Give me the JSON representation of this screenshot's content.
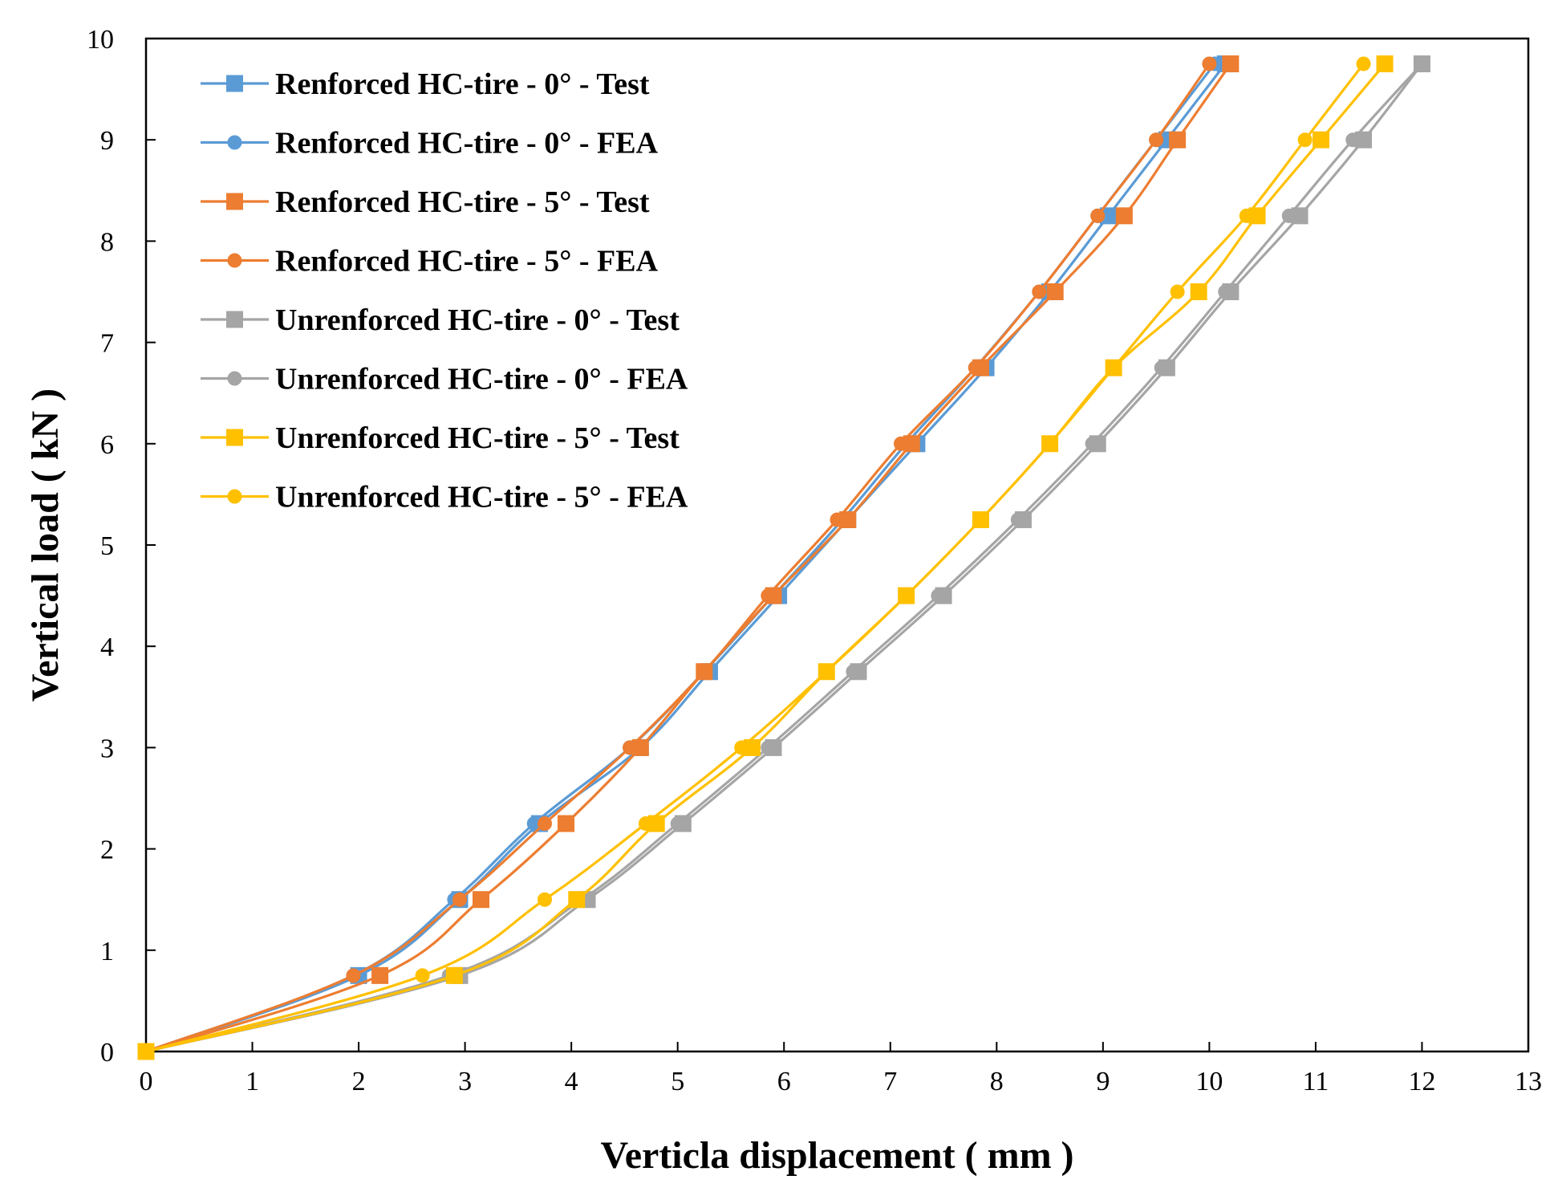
{
  "chart_data": {
    "type": "line",
    "title": "",
    "xlabel": "Verticla displacement ( mm )",
    "ylabel": "Vertical load ( kN )",
    "xlim": [
      0,
      13
    ],
    "ylim": [
      0,
      10
    ],
    "xticks": [
      0,
      1,
      2,
      3,
      4,
      5,
      6,
      7,
      8,
      9,
      10,
      11,
      12,
      13
    ],
    "yticks": [
      0,
      1,
      2,
      3,
      4,
      5,
      6,
      7,
      8,
      9,
      10
    ],
    "legend_position": "top-left",
    "grid": false,
    "series": [
      {
        "name": "Renforced HC-tire - 0° - Test",
        "color": "#5B9BD5",
        "marker": "square",
        "x": [
          0,
          2.0,
          2.95,
          3.7,
          4.65,
          5.3,
          5.95,
          6.6,
          7.25,
          7.9,
          8.5,
          9.05,
          9.6,
          10.15
        ],
        "y": [
          0,
          0.75,
          1.5,
          2.25,
          3.0,
          3.75,
          4.5,
          5.25,
          6.0,
          6.75,
          7.5,
          8.25,
          9.0,
          9.75
        ]
      },
      {
        "name": "Renforced HC-tire - 0° - FEA",
        "color": "#5B9BD5",
        "marker": "circle",
        "x": [
          0,
          1.95,
          2.9,
          3.65,
          4.55,
          5.25,
          5.9,
          6.55,
          7.15,
          7.8,
          8.4,
          8.95,
          9.5,
          10.05
        ],
        "y": [
          0,
          0.75,
          1.5,
          2.25,
          3.0,
          3.75,
          4.5,
          5.25,
          6.0,
          6.75,
          7.5,
          8.25,
          9.0,
          9.75
        ]
      },
      {
        "name": "Renforced HC-tire - 5° - Test",
        "color": "#ED7D31",
        "marker": "square",
        "x": [
          0,
          2.2,
          3.15,
          3.95,
          4.65,
          5.25,
          5.9,
          6.6,
          7.2,
          7.85,
          8.55,
          9.2,
          9.7,
          10.2
        ],
        "y": [
          0,
          0.75,
          1.5,
          2.25,
          3.0,
          3.75,
          4.5,
          5.25,
          6.0,
          6.75,
          7.5,
          8.25,
          9.0,
          9.75
        ]
      },
      {
        "name": "Renforced HC-tire - 5° - FEA",
        "color": "#ED7D31",
        "marker": "circle",
        "x": [
          0,
          1.95,
          2.95,
          3.75,
          4.55,
          5.25,
          5.85,
          6.5,
          7.1,
          7.8,
          8.4,
          8.95,
          9.5,
          10.0
        ],
        "y": [
          0,
          0.75,
          1.5,
          2.25,
          3.0,
          3.75,
          4.5,
          5.25,
          6.0,
          6.75,
          7.5,
          8.25,
          9.0,
          9.75
        ]
      },
      {
        "name": "Unrenforced HC-tire - 0° - Test",
        "color": "#A5A5A5",
        "marker": "square",
        "x": [
          0,
          2.95,
          4.15,
          5.05,
          5.9,
          6.7,
          7.5,
          8.25,
          8.95,
          9.6,
          10.2,
          10.85,
          11.45,
          12.0
        ],
        "y": [
          0,
          0.75,
          1.5,
          2.25,
          3.0,
          3.75,
          4.5,
          5.25,
          6.0,
          6.75,
          7.5,
          8.25,
          9.0,
          9.75
        ]
      },
      {
        "name": "Unrenforced HC-tire - 0° - FEA",
        "color": "#A5A5A5",
        "marker": "circle",
        "x": [
          0,
          2.85,
          4.1,
          5.0,
          5.85,
          6.65,
          7.45,
          8.2,
          8.9,
          9.55,
          10.15,
          10.75,
          11.35,
          12.0
        ],
        "y": [
          0,
          0.75,
          1.5,
          2.25,
          3.0,
          3.75,
          4.5,
          5.25,
          6.0,
          6.75,
          7.5,
          8.25,
          9.0,
          9.75
        ]
      },
      {
        "name": "Unrenforced HC-tire - 5° - Test",
        "color": "#FFC000",
        "marker": "square",
        "x": [
          0,
          2.9,
          4.05,
          4.8,
          5.7,
          6.4,
          7.15,
          7.85,
          8.5,
          9.1,
          9.9,
          10.45,
          11.05,
          11.65
        ],
        "y": [
          0,
          0.75,
          1.5,
          2.25,
          3.0,
          3.75,
          4.5,
          5.25,
          6.0,
          6.75,
          7.5,
          8.25,
          9.0,
          9.75
        ]
      },
      {
        "name": "Unrenforced HC-tire - 5° - FEA",
        "color": "#FFC000",
        "marker": "circle",
        "x": [
          0,
          2.6,
          3.75,
          4.7,
          5.6,
          6.4,
          7.15,
          7.85,
          8.5,
          9.1,
          9.7,
          10.35,
          10.9,
          11.45
        ],
        "y": [
          0,
          0.75,
          1.5,
          2.25,
          3.0,
          3.75,
          4.5,
          5.25,
          6.0,
          6.75,
          7.5,
          8.25,
          9.0,
          9.75
        ]
      }
    ]
  }
}
